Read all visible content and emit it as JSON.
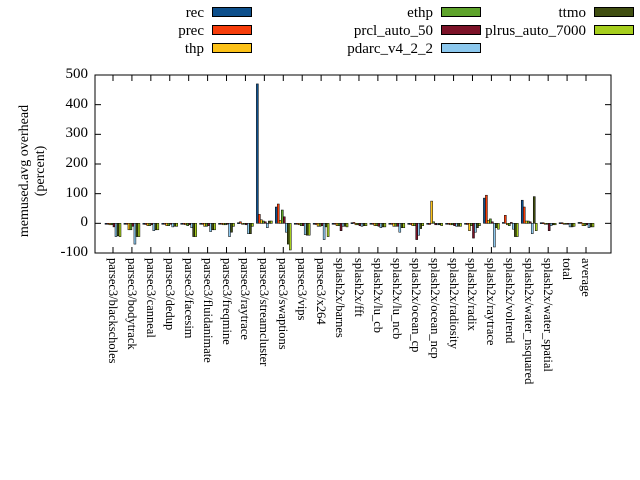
{
  "chart_data": {
    "type": "bar",
    "title": "",
    "ylabel_line1": "memused.avg overhead",
    "ylabel_line2": "(percent)",
    "xlabel": "",
    "ylim": [
      -100,
      500
    ],
    "yticks": [
      500,
      400,
      300,
      200,
      100,
      0,
      -100
    ],
    "grid": false,
    "legend_position": "top, 3 columns",
    "categories": [
      "parsec3/blackscholes",
      "parsec3/bodytrack",
      "parsec3/canneal",
      "parsec3/dedup",
      "parsec3/facesim",
      "parsec3/fluidanimate",
      "parsec3/freqmine",
      "parsec3/raytrace",
      "parsec3/streamcluster",
      "parsec3/swaptions",
      "parsec3/vips",
      "parsec3/x264",
      "splash2x/barnes",
      "splash2x/fft",
      "splash2x/lu_cb",
      "splash2x/lu_ncb",
      "splash2x/ocean_cp",
      "splash2x/ocean_ncp",
      "splash2x/radiosity",
      "splash2x/radix",
      "splash2x/raytrace",
      "splash2x/volrend",
      "splash2x/water_nsquared",
      "splash2x/water_spatial",
      "total",
      "average"
    ],
    "series": [
      {
        "name": "rec",
        "color": "#0d4f8b",
        "legend_col": 0,
        "legend_row": 0,
        "values": [
          -2,
          -2,
          -3,
          -2,
          -2,
          -2,
          -2,
          2,
          470,
          55,
          -2,
          -3,
          -2,
          2,
          -2,
          -2,
          -3,
          -3,
          -2,
          -3,
          85,
          3,
          78,
          2,
          2,
          3
        ]
      },
      {
        "name": "prec",
        "color": "#f63d0a",
        "legend_col": 0,
        "legend_row": 1,
        "values": [
          -3,
          -3,
          -4,
          -2,
          -3,
          -3,
          -2,
          5,
          30,
          65,
          -3,
          -4,
          -3,
          3,
          -2,
          -3,
          -4,
          -4,
          -3,
          -4,
          95,
          27,
          55,
          2,
          2,
          3
        ]
      },
      {
        "name": "thp",
        "color": "#fcc117",
        "legend_col": 0,
        "legend_row": 2,
        "values": [
          -5,
          -22,
          -8,
          -8,
          -5,
          -10,
          -5,
          -3,
          12,
          10,
          -5,
          -10,
          -8,
          -5,
          -8,
          -10,
          -8,
          75,
          -5,
          -25,
          10,
          -5,
          8,
          -3,
          -3,
          -8
        ]
      },
      {
        "name": "ethp",
        "color": "#5ea32b",
        "legend_col": 1,
        "legend_row": 0,
        "values": [
          -5,
          -22,
          -8,
          -8,
          -8,
          -10,
          -5,
          -3,
          8,
          45,
          -8,
          -10,
          -8,
          -5,
          -8,
          -10,
          -8,
          5,
          -5,
          -8,
          15,
          -8,
          8,
          -3,
          -3,
          -8
        ]
      },
      {
        "name": "prcl_auto_50",
        "color": "#7c1228",
        "legend_col": 1,
        "legend_row": 1,
        "values": [
          -12,
          -10,
          -5,
          -3,
          -5,
          -8,
          -3,
          -5,
          5,
          22,
          -8,
          -8,
          -25,
          -8,
          -10,
          -10,
          -55,
          -5,
          -8,
          -50,
          5,
          3,
          5,
          -25,
          -3,
          -5
        ]
      },
      {
        "name": "pdarc_v4_2_2",
        "color": "#8cc8ee",
        "legend_col": 1,
        "legend_row": 2,
        "values": [
          -45,
          -70,
          -25,
          -12,
          -15,
          -28,
          -45,
          -35,
          -15,
          -30,
          -38,
          -55,
          -10,
          -10,
          -15,
          -30,
          -40,
          -5,
          -10,
          -30,
          -80,
          -20,
          -35,
          -8,
          -12,
          -15
        ]
      },
      {
        "name": "ttmo",
        "color": "#404e11",
        "legend_col": 2,
        "legend_row": 0,
        "values": [
          -42,
          -45,
          -22,
          -10,
          -45,
          -22,
          -30,
          -35,
          8,
          -70,
          -40,
          -12,
          -10,
          -8,
          -12,
          -15,
          -18,
          -5,
          -10,
          -15,
          -15,
          -45,
          90,
          -5,
          -12,
          -12
        ]
      },
      {
        "name": "plrus_auto_7000",
        "color": "#a6ce1d",
        "legend_col": 2,
        "legend_row": 1,
        "values": [
          -45,
          -45,
          -22,
          -10,
          -45,
          -22,
          -10,
          -10,
          8,
          -90,
          -40,
          -45,
          -12,
          -8,
          -12,
          -15,
          -8,
          -8,
          -10,
          -8,
          -20,
          -45,
          -25,
          -5,
          -10,
          -12
        ]
      }
    ]
  }
}
